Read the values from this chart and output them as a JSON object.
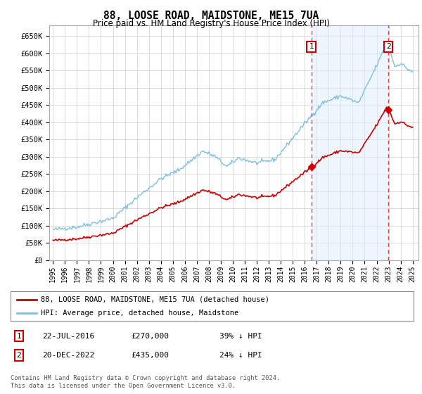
{
  "title": "88, LOOSE ROAD, MAIDSTONE, ME15 7UA",
  "subtitle": "Price paid vs. HM Land Registry's House Price Index (HPI)",
  "ylim": [
    0,
    680000
  ],
  "yticks": [
    0,
    50000,
    100000,
    150000,
    200000,
    250000,
    300000,
    350000,
    400000,
    450000,
    500000,
    550000,
    600000,
    650000
  ],
  "sale1_date_num": 2016.55,
  "sale1_price": 270000,
  "sale2_date_num": 2022.97,
  "sale2_price": 435000,
  "hpi_color": "#7fbfdf",
  "hpi_fill_color": "#ddeeff",
  "sale_color": "#cc0000",
  "dashed_color": "#dd4444",
  "legend_label1": "88, LOOSE ROAD, MAIDSTONE, ME15 7UA (detached house)",
  "legend_label2": "HPI: Average price, detached house, Maidstone",
  "annotation1_label": "1",
  "annotation1_date": "22-JUL-2016",
  "annotation1_price": "£270,000",
  "annotation1_hpi": "39% ↓ HPI",
  "annotation2_label": "2",
  "annotation2_date": "20-DEC-2022",
  "annotation2_price": "£435,000",
  "annotation2_hpi": "24% ↓ HPI",
  "footer": "Contains HM Land Registry data © Crown copyright and database right 2024.\nThis data is licensed under the Open Government Licence v3.0.",
  "bg_color": "#ffffff",
  "plot_bg_color": "#ffffff",
  "grid_color": "#cccccc",
  "xmin": 1994.7,
  "xmax": 2025.5
}
